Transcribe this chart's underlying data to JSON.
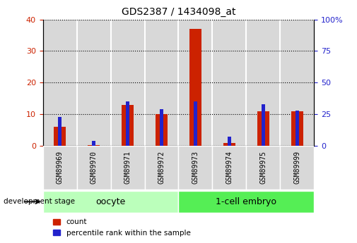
{
  "title": "GDS2387 / 1434098_at",
  "samples": [
    "GSM89969",
    "GSM89970",
    "GSM89971",
    "GSM89972",
    "GSM89973",
    "GSM89974",
    "GSM89975",
    "GSM89999"
  ],
  "count_values": [
    6,
    0.3,
    13,
    10,
    37,
    1,
    11,
    11
  ],
  "percentile_values": [
    23,
    4,
    35,
    29,
    35,
    7,
    33,
    28
  ],
  "left_ylim": [
    0,
    40
  ],
  "right_ylim": [
    0,
    100
  ],
  "left_yticks": [
    0,
    10,
    20,
    30,
    40
  ],
  "right_yticks": [
    0,
    25,
    50,
    75,
    100
  ],
  "right_yticklabels": [
    "0",
    "25",
    "50",
    "75",
    "100%"
  ],
  "bar_color": "#cc2200",
  "percentile_color": "#2222cc",
  "title_color": "black",
  "left_tick_color": "#cc2200",
  "right_tick_color": "#2222cc",
  "group_labels": [
    "oocyte",
    "1-cell embryo"
  ],
  "group_ranges": [
    [
      0,
      4
    ],
    [
      4,
      8
    ]
  ],
  "group_colors_light": [
    "#bbffbb",
    "#55ee55"
  ],
  "dev_stage_label": "development stage",
  "legend_count_label": "count",
  "legend_percentile_label": "percentile rank within the sample",
  "bar_width": 0.35,
  "percentile_bar_width": 0.12,
  "sample_box_color": "#d8d8d8",
  "plot_bg": "white"
}
